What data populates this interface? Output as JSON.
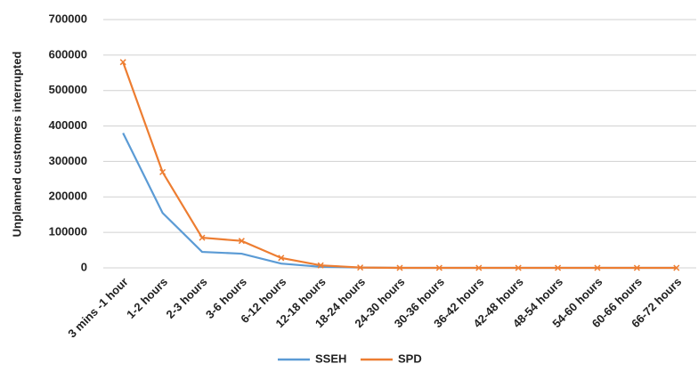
{
  "chart_data": {
    "type": "line",
    "y_label": "Unplanned customers interrupted",
    "categories": [
      "3 mins -1 hour",
      "1-2 hours",
      "2-3 hours",
      "3-6 hours",
      "6-12 hours",
      "12-18 hours",
      "18-24 hours",
      "24-30 hours",
      "30-36 hours",
      "36-42 hours",
      "42-48 hours",
      "48-54 hours",
      "54-60 hours",
      "60-66 hours",
      "66-72 hours"
    ],
    "series": [
      {
        "name": "SSEH",
        "color": "#5b9bd5",
        "values": [
          380000,
          155000,
          45000,
          40000,
          12000,
          3000,
          1000,
          0,
          0,
          0,
          0,
          0,
          0,
          0,
          0
        ]
      },
      {
        "name": "SPD",
        "color": "#ed7d31",
        "values": [
          580000,
          270000,
          85000,
          76000,
          28000,
          7000,
          1000,
          0,
          0,
          0,
          0,
          0,
          0,
          0,
          0
        ]
      }
    ],
    "ylim": [
      0,
      700000
    ],
    "yticks": [
      0,
      100000,
      200000,
      300000,
      400000,
      500000,
      600000,
      700000
    ],
    "grid": true,
    "legend": "bottom"
  }
}
